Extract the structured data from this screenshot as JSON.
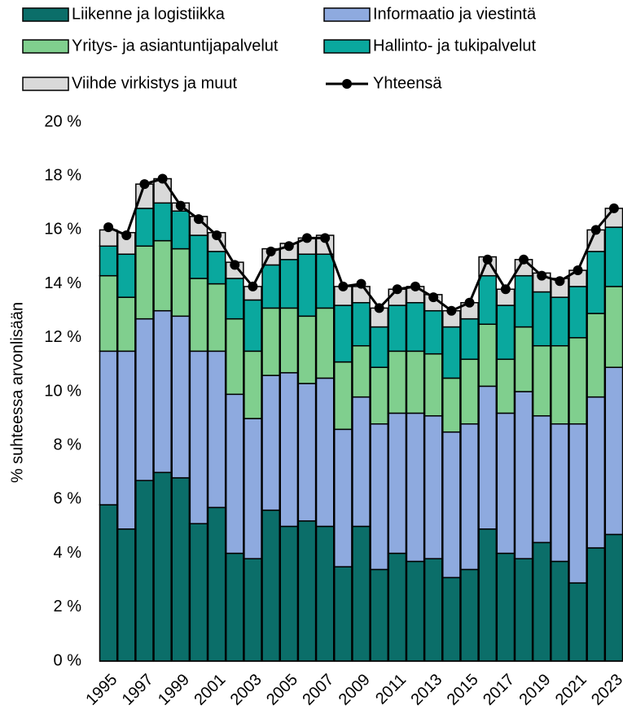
{
  "chart_data": {
    "type": "stacked-bar",
    "y_label": "% suhteessa arvonlisään",
    "categories": [
      "1995",
      null,
      "1997",
      null,
      "1999",
      null,
      "2001",
      null,
      "2003",
      null,
      "2005",
      null,
      "2007",
      null,
      "2009",
      null,
      "2011",
      null,
      "2013",
      null,
      "2015",
      null,
      "2017",
      null,
      "2019",
      null,
      "2021",
      null,
      "2023"
    ],
    "series": [
      {
        "name": "Liikenne ja logistiikka",
        "color": "#0b6e69",
        "values": [
          5.8,
          4.9,
          6.7,
          7.0,
          6.8,
          5.1,
          5.7,
          4.0,
          3.8,
          5.6,
          5.0,
          5.2,
          5.0,
          3.5,
          5.0,
          3.4,
          4.0,
          3.7,
          3.8,
          3.1,
          3.4,
          4.9,
          4.0,
          3.8,
          4.4,
          3.7,
          2.9,
          4.2,
          4.7
        ]
      },
      {
        "name": "Informaatio ja viestintä",
        "color": "#8eaadf",
        "values": [
          5.7,
          6.6,
          6.0,
          6.0,
          6.0,
          6.4,
          5.8,
          5.9,
          5.2,
          5.0,
          5.7,
          5.1,
          5.5,
          5.1,
          4.8,
          5.4,
          5.2,
          5.5,
          5.3,
          5.4,
          5.4,
          5.3,
          5.2,
          6.2,
          4.7,
          5.1,
          5.9,
          5.6,
          6.2
        ]
      },
      {
        "name": "Yritys- ja asiantuntijapalvelut",
        "color": "#80cf8e",
        "values": [
          2.8,
          2.0,
          2.7,
          2.6,
          2.5,
          2.7,
          2.5,
          2.8,
          2.5,
          2.5,
          2.4,
          2.5,
          2.6,
          2.5,
          1.9,
          2.1,
          2.3,
          2.3,
          2.3,
          2.0,
          2.4,
          2.3,
          2.0,
          2.4,
          2.6,
          2.9,
          3.2,
          3.1,
          3.0
        ]
      },
      {
        "name": "Hallinto- ja tukipalvelut",
        "color": "#0aa89e",
        "values": [
          1.1,
          1.6,
          1.4,
          1.4,
          1.4,
          1.6,
          1.2,
          1.5,
          1.9,
          1.6,
          1.8,
          2.3,
          2.0,
          2.1,
          1.6,
          1.5,
          1.7,
          1.8,
          1.6,
          1.9,
          1.5,
          1.8,
          2.0,
          1.9,
          2.0,
          1.8,
          1.9,
          2.3,
          2.2
        ]
      },
      {
        "name": "Viihde virkistys ja muut",
        "color": "#d9d9d9",
        "values": [
          0.6,
          0.8,
          0.9,
          0.9,
          0.3,
          0.7,
          0.7,
          0.6,
          0.5,
          0.6,
          0.6,
          0.6,
          0.7,
          0.7,
          0.6,
          0.7,
          0.6,
          0.6,
          0.6,
          0.6,
          0.6,
          0.7,
          0.6,
          0.6,
          0.7,
          0.7,
          0.6,
          0.8,
          0.7
        ]
      }
    ],
    "line": {
      "name": "Yhteensä",
      "color": "#000000",
      "values": [
        16.1,
        15.8,
        17.7,
        17.9,
        16.9,
        16.4,
        15.8,
        14.7,
        13.9,
        15.2,
        15.4,
        15.7,
        15.7,
        13.9,
        14.0,
        13.1,
        13.8,
        13.9,
        13.5,
        13.0,
        13.3,
        14.9,
        13.8,
        14.9,
        14.3,
        14.1,
        14.5,
        16.0,
        16.8
      ]
    },
    "ylim": [
      0,
      20
    ],
    "yticks": [
      {
        "value": 0,
        "label": "0 %"
      },
      {
        "value": 2,
        "label": "2 %"
      },
      {
        "value": 4,
        "label": "4 %"
      },
      {
        "value": 6,
        "label": "6 %"
      },
      {
        "value": 8,
        "label": "8 %"
      },
      {
        "value": 10,
        "label": "10 %"
      },
      {
        "value": 12,
        "label": "12 %"
      },
      {
        "value": 14,
        "label": "14 %"
      },
      {
        "value": 16,
        "label": "16 %"
      },
      {
        "value": 18,
        "label": "18 %"
      },
      {
        "value": 20,
        "label": "20 %"
      }
    ],
    "grid": false
  }
}
